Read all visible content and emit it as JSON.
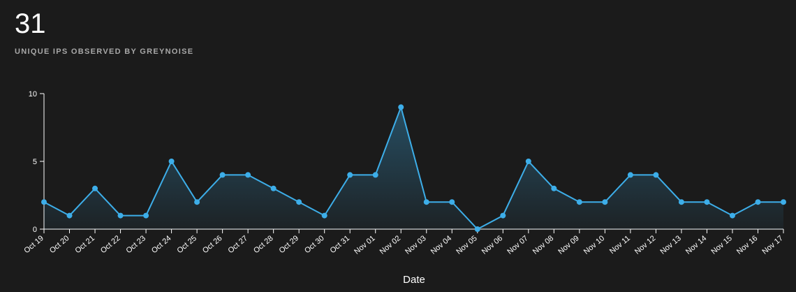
{
  "summary": {
    "value": 31,
    "label": "UNIQUE IPS OBSERVED BY GREYNOISE"
  },
  "chart_data": {
    "type": "line",
    "xlabel": "Date",
    "categories": [
      "Oct 19",
      "Oct 20",
      "Oct 21",
      "Oct 22",
      "Oct 23",
      "Oct 24",
      "Oct 25",
      "Oct 26",
      "Oct 27",
      "Oct 28",
      "Oct 29",
      "Oct 30",
      "Oct 31",
      "Nov 01",
      "Nov 02",
      "Nov 03",
      "Nov 04",
      "Nov 05",
      "Nov 06",
      "Nov 07",
      "Nov 08",
      "Nov 09",
      "Nov 10",
      "Nov 11",
      "Nov 12",
      "Nov 13",
      "Nov 14",
      "Nov 15",
      "Nov 16",
      "Nov 17"
    ],
    "values": [
      2,
      1,
      3,
      1,
      1,
      5,
      2,
      4,
      4,
      3,
      2,
      1,
      4,
      4,
      9,
      2,
      2,
      0,
      1,
      5,
      3,
      2,
      2,
      4,
      4,
      2,
      2,
      1,
      2,
      2
    ],
    "color": "#3daee9",
    "area": true,
    "ylim": [
      0,
      10
    ],
    "yticks": [
      0,
      5,
      10
    ]
  }
}
